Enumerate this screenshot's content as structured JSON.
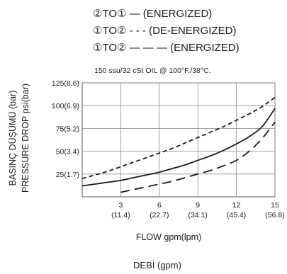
{
  "chart_data": {
    "type": "line",
    "legend_position": "top",
    "legend": [
      "②TO① — (ENERGIZED)",
      "①TO② - - - (DE-ENERGIZED)",
      "①TO② — — — (ENERGIZED)"
    ],
    "condition_note": "150 ssu/32 cSt OIL @ 100°F./38°C.",
    "ylabel_lines": [
      "BASINÇ DÜŞÜMÜ (bar)",
      "PRESSURE DROP psi(bar)"
    ],
    "xlabel": "FLOW gpm(lpm)",
    "caption": "DEBİ (gpm)",
    "x_ticks": [
      {
        "value": 3,
        "label": "3",
        "sublabel": "(11.4)"
      },
      {
        "value": 6,
        "label": "6",
        "sublabel": "(22.7)"
      },
      {
        "value": 9,
        "label": "9",
        "sublabel": "(34.1)"
      },
      {
        "value": 12,
        "label": "12",
        "sublabel": "(45.4)"
      },
      {
        "value": 15,
        "label": "15",
        "sublabel": "(56.8)"
      }
    ],
    "y_ticks": [
      {
        "value": 25,
        "label": "25(1.7)"
      },
      {
        "value": 50,
        "label": "50(3.4)"
      },
      {
        "value": 75,
        "label": "75(5.2)"
      },
      {
        "value": 100,
        "label": "100(6.9)"
      },
      {
        "value": 125,
        "label": "125(8.6)"
      }
    ],
    "xlim": [
      0,
      15
    ],
    "ylim": [
      0,
      125
    ],
    "grid": true,
    "series": [
      {
        "name": "②TO① (ENERGIZED)",
        "style": "solid",
        "x": [
          0,
          1,
          2,
          3,
          4,
          5,
          6,
          7,
          8,
          9,
          10,
          11,
          12,
          13,
          14,
          15
        ],
        "y": [
          12,
          14,
          16,
          18,
          21,
          24,
          27,
          31,
          35,
          40,
          45,
          51,
          58,
          66,
          77,
          97
        ]
      },
      {
        "name": "①TO② (DE-ENERGIZED)",
        "style": "short-dash",
        "x": [
          0,
          1,
          2,
          3,
          4,
          5,
          6,
          7,
          8,
          9,
          10,
          11,
          12,
          13,
          14,
          15
        ],
        "y": [
          20,
          24,
          28,
          33,
          38,
          43,
          48,
          53,
          59,
          65,
          71,
          77,
          84,
          91,
          99,
          109
        ]
      },
      {
        "name": "①TO② (ENERGIZED)",
        "style": "long-dash",
        "x": [
          3,
          4,
          5,
          6,
          7,
          8,
          9,
          10,
          11,
          12,
          13,
          14,
          15
        ],
        "y": [
          5,
          8,
          11,
          14,
          17,
          21,
          25,
          29,
          34,
          40,
          50,
          64,
          82
        ]
      }
    ]
  }
}
